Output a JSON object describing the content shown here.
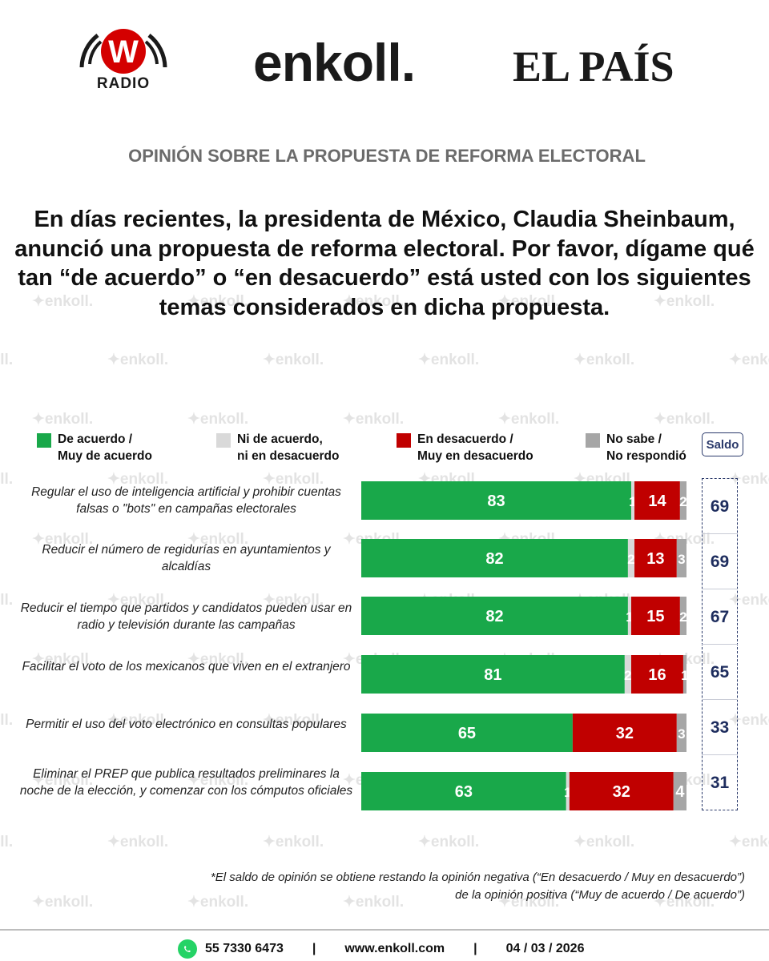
{
  "header": {
    "logo_w_letter": "W",
    "logo_w_text": "RADIO",
    "logo_enkoll": "enkoll.",
    "logo_pais": "EL PAÍS"
  },
  "subtitle": "OPINIÓN SOBRE LA PROPUESTA DE REFORMA ELECTORAL",
  "question": "En días recientes, la presidenta de México, Claudia Sheinbaum, anunció una propuesta de reforma electoral. Por favor, dígame qué tan “de acuerdo” o “en desacuerdo” está usted con los siguientes temas considerados en dicha propuesta.",
  "watermark": "enkoll.",
  "chart_data": {
    "type": "bar",
    "orientation": "horizontal",
    "stacked": true,
    "categories": [
      "Regular el uso de inteligencia artificial y prohibir cuentas falsas o \"bots\" en campañas electorales",
      "Reducir el número de regidurías en ayuntamientos y alcaldías",
      "Reducir el tiempo que partidos y candidatos pueden usar en radio y televisión durante las campañas",
      "Facilitar el voto de los mexicanos que viven en el extranjero",
      "Permitir el uso del voto electrónico en consultas populares",
      "Eliminar el PREP que publica resultados preliminares la noche de la elección, y comenzar con los cómputos oficiales"
    ],
    "series": [
      {
        "name": "De acuerdo / Muy de acuerdo",
        "color": "#19a84a",
        "values": [
          83,
          82,
          82,
          81,
          65,
          63
        ]
      },
      {
        "name": "Ni de acuerdo, ni en desacuerdo",
        "color": "#d9d9d9",
        "values": [
          1,
          2,
          1,
          2,
          0,
          1
        ]
      },
      {
        "name": "En desacuerdo / Muy en desacuerdo",
        "color": "#c00000",
        "values": [
          14,
          13,
          15,
          16,
          32,
          32
        ]
      },
      {
        "name": "No sabe / No respondió",
        "color": "#a6a6a6",
        "values": [
          2,
          3,
          2,
          1,
          3,
          4
        ]
      }
    ],
    "legend": [
      {
        "line1": "De acuerdo /",
        "line2": "Muy de acuerdo"
      },
      {
        "line1": "Ni de acuerdo,",
        "line2": "ni en desacuerdo"
      },
      {
        "line1": "En desacuerdo /",
        "line2": "Muy en desacuerdo"
      },
      {
        "line1": "No sabe /",
        "line2": "No respondió"
      }
    ],
    "legend_placement": "top",
    "saldo_label": "Saldo",
    "saldo": [
      69,
      69,
      67,
      65,
      33,
      31
    ],
    "xlim": [
      0,
      100
    ]
  },
  "footnote": {
    "line1": "*El saldo de opinión se obtiene restando la opinión negativa (“En desacuerdo / Muy en desacuerdo”)",
    "line2": "de la opinión positiva (“Muy de acuerdo / De acuerdo”)"
  },
  "footer": {
    "phone": "55 7330 6473",
    "separator": "|",
    "website": "www.enkoll.com",
    "date": "04 / 03 / 2026"
  },
  "colors": {
    "agree": "#19a84a",
    "neutral": "#d9d9d9",
    "disagree": "#c00000",
    "nodata": "#a6a6a6",
    "saldo": "#1e2d5e",
    "logo_red": "#d40000"
  }
}
